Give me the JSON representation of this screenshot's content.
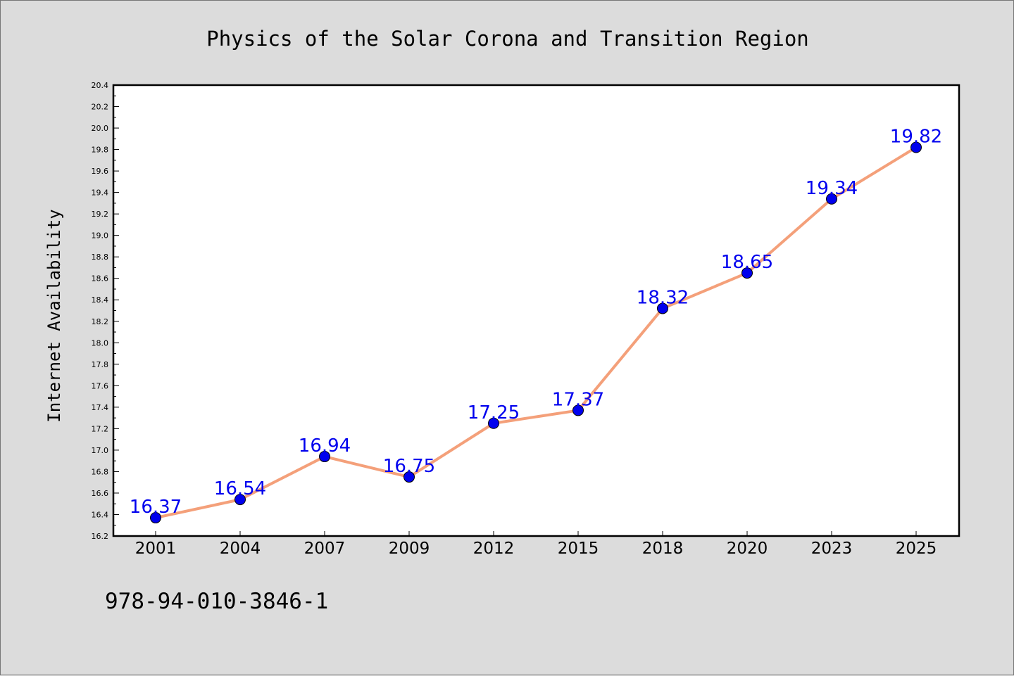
{
  "chart_data": {
    "type": "line",
    "title": "Physics of the Solar Corona and Transition Region",
    "xlabel": "",
    "ylabel": "Internet Availability",
    "categories": [
      "2001",
      "2004",
      "2007",
      "2009",
      "2012",
      "2015",
      "2018",
      "2020",
      "2023",
      "2025"
    ],
    "series": [
      {
        "values": [
          16.37,
          16.54,
          16.94,
          16.75,
          17.25,
          17.37,
          18.32,
          18.65,
          19.34,
          19.82
        ],
        "data_labels": [
          "16.37",
          "16.54",
          "16.94",
          "16.75",
          "17.25",
          "17.37",
          "18.32",
          "18.65",
          "19.34",
          "19.82"
        ],
        "line_color": "#f4a07a",
        "marker_color": "#0000ee"
      }
    ],
    "ylim": [
      16.2,
      20.4
    ],
    "yticks": [
      "16.2",
      "16.4",
      "16.6",
      "16.8",
      "17.0",
      "17.2",
      "17.4",
      "17.6",
      "17.8",
      "18.0",
      "18.2",
      "18.4",
      "18.6",
      "18.8",
      "19.0",
      "19.2",
      "19.4",
      "19.6",
      "19.8",
      "20.0",
      "20.2",
      "20.4"
    ],
    "grid": false,
    "legend": "none",
    "label_color": "#0000ee"
  },
  "footer": {
    "isbn": "978-94-010-3846-1"
  }
}
